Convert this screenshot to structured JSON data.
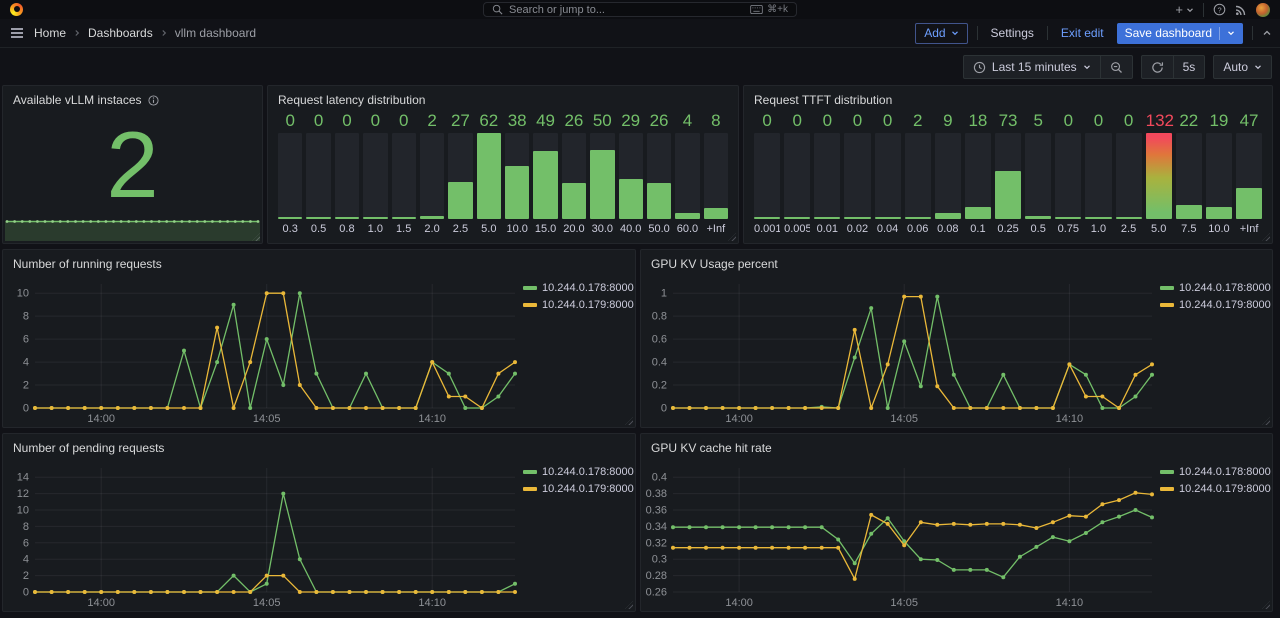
{
  "palette": {
    "green": "#73BF69",
    "yellow": "#EAB839",
    "red": "#F2495C",
    "blue": "#3D71D9",
    "link_blue": "#6E9FFF",
    "orange": "#F05A28"
  },
  "topbar": {
    "add_button": "+",
    "search_placeholder": "Search or jump to...",
    "search_shortcut": "⌘+k"
  },
  "breadcrumb": {
    "items": [
      "Home",
      "Dashboards",
      "vllm dashboard"
    ]
  },
  "edit_bar": {
    "add": "Add",
    "settings": "Settings",
    "exit_edit": "Exit edit",
    "save": "Save dashboard"
  },
  "time_bar": {
    "range": "Last 15 minutes",
    "refresh_interval": "5s",
    "auto": "Auto"
  },
  "chart_data": [
    {
      "type": "stat",
      "title": "Available vLLM instaces",
      "value": "2",
      "color": "#73BF69",
      "sparkline": [
        2,
        2,
        2,
        2,
        2,
        2,
        2,
        2,
        2,
        2,
        2,
        2,
        2,
        2,
        2,
        2,
        2,
        2,
        2,
        2,
        2,
        2,
        2,
        2,
        2,
        2,
        2,
        2,
        2,
        2,
        2,
        2,
        2,
        2
      ]
    },
    {
      "type": "bar",
      "title": "Request latency distribution",
      "categories": [
        "0.3",
        "0.5",
        "0.8",
        "1.0",
        "1.5",
        "2.0",
        "2.5",
        "5.0",
        "10.0",
        "15.0",
        "20.0",
        "30.0",
        "40.0",
        "50.0",
        "60.0",
        "+Inf"
      ],
      "values": [
        0,
        0,
        0,
        0,
        0,
        2,
        27,
        62,
        38,
        49,
        26,
        50,
        29,
        26,
        4,
        8
      ],
      "max": 62,
      "alert_indices": []
    },
    {
      "type": "bar",
      "title": "Request TTFT distribution",
      "categories": [
        "0.001",
        "0.005",
        "0.01",
        "0.02",
        "0.04",
        "0.06",
        "0.08",
        "0.1",
        "0.25",
        "0.5",
        "0.75",
        "1.0",
        "2.5",
        "5.0",
        "7.5",
        "10.0",
        "+Inf"
      ],
      "values": [
        0,
        0,
        0,
        0,
        0,
        2,
        9,
        18,
        73,
        5,
        0,
        0,
        0,
        132,
        22,
        19,
        47
      ],
      "max": 132,
      "alert_indices": [
        13
      ]
    },
    {
      "type": "line",
      "title": "Number of running requests",
      "ylim": [
        0,
        10
      ],
      "yticks": [
        {
          "v": 0,
          "label": "0"
        },
        {
          "v": 2,
          "label": "2"
        },
        {
          "v": 4,
          "label": "4"
        },
        {
          "v": 6,
          "label": "6"
        },
        {
          "v": 8,
          "label": "8"
        },
        {
          "v": 10,
          "label": "10"
        }
      ],
      "xticks": [
        {
          "i": 4,
          "label": "14:00"
        },
        {
          "i": 14,
          "label": "14:05"
        },
        {
          "i": 24,
          "label": "14:10"
        }
      ],
      "legend_position": "right",
      "series": [
        {
          "name": "10.244.0.178:8000",
          "color": "#73BF69",
          "values": [
            0,
            0,
            0,
            0,
            0,
            0,
            0,
            0,
            0,
            5,
            0,
            4,
            9,
            0,
            6,
            2,
            10,
            3,
            0,
            0,
            3,
            0,
            0,
            0,
            4,
            3,
            0,
            0,
            1,
            3
          ]
        },
        {
          "name": "10.244.0.179:8000",
          "color": "#EAB839",
          "values": [
            0,
            0,
            0,
            0,
            0,
            0,
            0,
            0,
            0,
            0,
            0,
            7,
            0,
            4,
            10,
            10,
            2,
            0,
            0,
            0,
            0,
            0,
            0,
            0,
            4,
            1,
            1,
            0,
            3,
            4
          ]
        }
      ]
    },
    {
      "type": "line",
      "title": "GPU KV Usage percent",
      "ylim": [
        0,
        1
      ],
      "yticks": [
        {
          "v": 0,
          "label": "0"
        },
        {
          "v": 0.2,
          "label": "0.2"
        },
        {
          "v": 0.4,
          "label": "0.4"
        },
        {
          "v": 0.6,
          "label": "0.6"
        },
        {
          "v": 0.8,
          "label": "0.8"
        },
        {
          "v": 1,
          "label": "1"
        }
      ],
      "xticks": [
        {
          "i": 4,
          "label": "14:00"
        },
        {
          "i": 14,
          "label": "14:05"
        },
        {
          "i": 24,
          "label": "14:10"
        }
      ],
      "legend_position": "right",
      "series": [
        {
          "name": "10.244.0.178:8000",
          "color": "#73BF69",
          "values": [
            0,
            0,
            0,
            0,
            0,
            0,
            0,
            0,
            0,
            0.01,
            0,
            0.44,
            0.87,
            0,
            0.58,
            0.19,
            0.97,
            0.29,
            0,
            0,
            0.29,
            0,
            0,
            0,
            0.38,
            0.29,
            0,
            0,
            0.1,
            0.29
          ]
        },
        {
          "name": "10.244.0.179:8000",
          "color": "#EAB839",
          "values": [
            0,
            0,
            0,
            0,
            0,
            0,
            0,
            0,
            0,
            0,
            0,
            0.68,
            0,
            0.38,
            0.97,
            0.97,
            0.19,
            0,
            0,
            0,
            0,
            0,
            0,
            0,
            0.38,
            0.1,
            0.1,
            0,
            0.29,
            0.38
          ]
        }
      ]
    },
    {
      "type": "line",
      "title": "Number of pending requests",
      "ylim": [
        0,
        14
      ],
      "yticks": [
        {
          "v": 0,
          "label": "0"
        },
        {
          "v": 2,
          "label": "2"
        },
        {
          "v": 4,
          "label": "4"
        },
        {
          "v": 6,
          "label": "6"
        },
        {
          "v": 8,
          "label": "8"
        },
        {
          "v": 10,
          "label": "10"
        },
        {
          "v": 12,
          "label": "12"
        },
        {
          "v": 14,
          "label": "14"
        }
      ],
      "xticks": [
        {
          "i": 4,
          "label": "14:00"
        },
        {
          "i": 14,
          "label": "14:05"
        },
        {
          "i": 24,
          "label": "14:10"
        }
      ],
      "legend_position": "right",
      "series": [
        {
          "name": "10.244.0.178:8000",
          "color": "#73BF69",
          "values": [
            0,
            0,
            0,
            0,
            0,
            0,
            0,
            0,
            0,
            0,
            0,
            0,
            2,
            0,
            1,
            12,
            4,
            0,
            0,
            0,
            0,
            0,
            0,
            0,
            0,
            0,
            0,
            0,
            0,
            1
          ]
        },
        {
          "name": "10.244.0.179:8000",
          "color": "#EAB839",
          "values": [
            0,
            0,
            0,
            0,
            0,
            0,
            0,
            0,
            0,
            0,
            0,
            0,
            0,
            0,
            2,
            2,
            0,
            0,
            0,
            0,
            0,
            0,
            0,
            0,
            0,
            0,
            0,
            0,
            0,
            0
          ]
        }
      ]
    },
    {
      "type": "line",
      "title": "GPU KV cache hit rate",
      "ylim": [
        0.26,
        0.4
      ],
      "yticks": [
        {
          "v": 0.26,
          "label": "0.26"
        },
        {
          "v": 0.28,
          "label": "0.28"
        },
        {
          "v": 0.3,
          "label": "0.3"
        },
        {
          "v": 0.32,
          "label": "0.32"
        },
        {
          "v": 0.34,
          "label": "0.34"
        },
        {
          "v": 0.36,
          "label": "0.36"
        },
        {
          "v": 0.38,
          "label": "0.38"
        },
        {
          "v": 0.4,
          "label": "0.4"
        }
      ],
      "xticks": [
        {
          "i": 4,
          "label": "14:00"
        },
        {
          "i": 14,
          "label": "14:05"
        },
        {
          "i": 24,
          "label": "14:10"
        }
      ],
      "legend_position": "right",
      "series": [
        {
          "name": "10.244.0.178:8000",
          "color": "#73BF69",
          "values": [
            0.339,
            0.339,
            0.339,
            0.339,
            0.339,
            0.339,
            0.339,
            0.339,
            0.339,
            0.339,
            0.324,
            0.295,
            0.331,
            0.35,
            0.322,
            0.3,
            0.299,
            0.287,
            0.287,
            0.287,
            0.278,
            0.303,
            0.315,
            0.327,
            0.322,
            0.332,
            0.345,
            0.352,
            0.36,
            0.351
          ]
        },
        {
          "name": "10.244.0.179:8000",
          "color": "#EAB839",
          "values": [
            0.314,
            0.314,
            0.314,
            0.314,
            0.314,
            0.314,
            0.314,
            0.314,
            0.314,
            0.314,
            0.314,
            0.276,
            0.354,
            0.343,
            0.317,
            0.345,
            0.342,
            0.343,
            0.342,
            0.343,
            0.343,
            0.342,
            0.338,
            0.345,
            0.353,
            0.352,
            0.367,
            0.372,
            0.381,
            0.379
          ]
        }
      ]
    }
  ]
}
